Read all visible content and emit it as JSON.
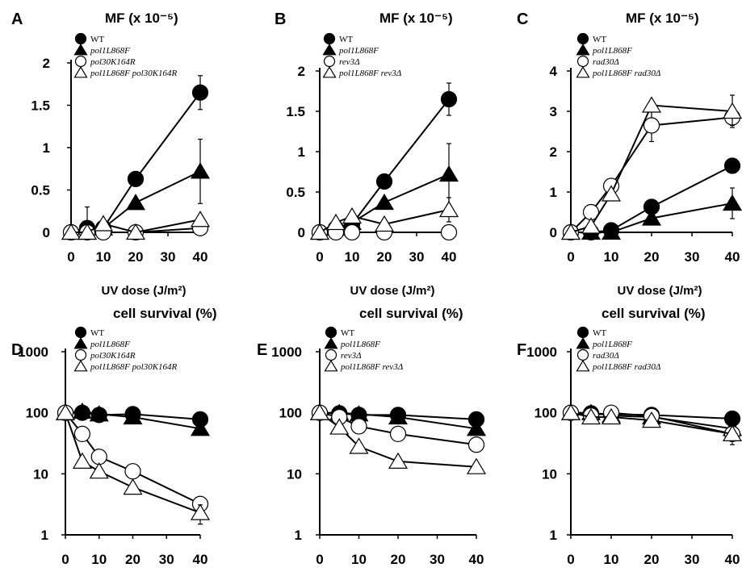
{
  "chart_data": [
    {
      "panel": "A",
      "type": "line",
      "title": "MF (x 10⁻⁵)",
      "xlabel": "UV dose (J/m²)",
      "x_ticks": [
        "0",
        "10",
        "20",
        "30",
        "40"
      ],
      "y_ticks": [
        "0",
        "0.5",
        "1",
        "1.5",
        "2"
      ],
      "ylim": [
        0,
        2
      ],
      "y_scale": "linear",
      "legend": [
        "WT",
        "pol1L868F",
        "pol30K164R",
        "pol1L868F pol30K164R"
      ],
      "series": [
        {
          "name": "WT",
          "marker": "circle-filled",
          "x": [
            0,
            5,
            10,
            20,
            40
          ],
          "y": [
            0,
            0.05,
            0.05,
            0.63,
            1.65
          ],
          "err": [
            0,
            0,
            0,
            0,
            0.2
          ]
        },
        {
          "name": "pol1L868F",
          "marker": "triangle-filled",
          "x": [
            0,
            5,
            10,
            20,
            40
          ],
          "y": [
            0,
            0,
            0.05,
            0.35,
            0.72
          ],
          "err": [
            0,
            0,
            0,
            0,
            0.38
          ]
        },
        {
          "name": "pol30K164R",
          "marker": "circle-open",
          "x": [
            0,
            5,
            10,
            20,
            40
          ],
          "y": [
            0,
            0,
            0,
            0,
            0.05
          ],
          "err": [
            0,
            0.3,
            0,
            0,
            0
          ]
        },
        {
          "name": "pol1L868F pol30K164R",
          "marker": "triangle-open",
          "x": [
            0,
            5,
            10,
            20,
            40
          ],
          "y": [
            0,
            0,
            0.1,
            0,
            0.15
          ],
          "err": [
            0,
            0,
            0,
            0,
            0
          ]
        }
      ]
    },
    {
      "panel": "B",
      "type": "line",
      "title": "MF (x 10⁻⁵)",
      "xlabel": "UV dose (J/m²)",
      "x_ticks": [
        "0",
        "10",
        "20",
        "30",
        "40"
      ],
      "y_ticks": [
        "0",
        "0.5",
        "1",
        "1.5",
        "2"
      ],
      "ylim": [
        0,
        2
      ],
      "y_scale": "linear",
      "legend": [
        "WT",
        "pol1L868F",
        "rev3Δ",
        "pol1L868F rev3Δ"
      ],
      "series": [
        {
          "name": "WT",
          "marker": "circle-filled",
          "x": [
            0,
            5,
            10,
            20,
            40
          ],
          "y": [
            0,
            0.05,
            0.1,
            0.63,
            1.65
          ],
          "err": [
            0,
            0,
            0,
            0,
            0.2
          ]
        },
        {
          "name": "pol1L868F",
          "marker": "triangle-filled",
          "x": [
            0,
            5,
            10,
            20,
            40
          ],
          "y": [
            0,
            0.05,
            0.12,
            0.37,
            0.72
          ],
          "err": [
            0,
            0,
            0,
            0,
            0.38
          ]
        },
        {
          "name": "rev3Δ",
          "marker": "circle-open",
          "x": [
            0,
            5,
            10,
            20,
            40
          ],
          "y": [
            0,
            0,
            0,
            0,
            0
          ],
          "err": [
            0,
            0,
            0,
            0,
            0
          ]
        },
        {
          "name": "pol1L868F rev3Δ",
          "marker": "triangle-open",
          "x": [
            0,
            5,
            10,
            20,
            40
          ],
          "y": [
            0,
            0.12,
            0.2,
            0.1,
            0.28
          ],
          "err": [
            0,
            0,
            0,
            0,
            0.15
          ]
        }
      ]
    },
    {
      "panel": "C",
      "type": "line",
      "title": "MF (x 10⁻⁵)",
      "xlabel": "UV dose (J/m²)",
      "x_ticks": [
        "0",
        "10",
        "20",
        "30",
        "40"
      ],
      "y_ticks": [
        "0",
        "1",
        "2",
        "3",
        "4"
      ],
      "ylim": [
        0,
        4
      ],
      "y_scale": "linear",
      "legend": [
        "WT",
        "pol1L868F",
        "rad30Δ",
        "pol1L868F rad30Δ"
      ],
      "series": [
        {
          "name": "WT",
          "marker": "circle-filled",
          "x": [
            0,
            5,
            10,
            20,
            40
          ],
          "y": [
            0,
            0,
            0.05,
            0.63,
            1.65
          ],
          "err": [
            0,
            0,
            0,
            0,
            0
          ]
        },
        {
          "name": "pol1L868F",
          "marker": "triangle-filled",
          "x": [
            0,
            5,
            10,
            20,
            40
          ],
          "y": [
            0,
            0,
            0,
            0.35,
            0.72
          ],
          "err": [
            0,
            0,
            0,
            0,
            0.38
          ]
        },
        {
          "name": "rad30Δ",
          "marker": "circle-open",
          "x": [
            0,
            5,
            10,
            20,
            40
          ],
          "y": [
            0,
            0.5,
            1.15,
            2.65,
            2.85
          ],
          "err": [
            0,
            0,
            0,
            0.4,
            0.2
          ]
        },
        {
          "name": "pol1L868F rad30Δ",
          "marker": "triangle-open",
          "x": [
            0,
            5,
            10,
            20,
            40
          ],
          "y": [
            0,
            0.15,
            0.95,
            3.15,
            3.0
          ],
          "err": [
            0,
            0,
            0,
            0,
            0.4
          ]
        }
      ]
    },
    {
      "panel": "D",
      "type": "line",
      "title": "cell survival (%)",
      "xlabel": "UV dose (J/m²)",
      "x_ticks": [
        "0",
        "10",
        "20",
        "30",
        "40"
      ],
      "y_ticks": [
        "1",
        "10",
        "100",
        "1000"
      ],
      "ylim": [
        1,
        1000
      ],
      "y_scale": "log",
      "legend": [
        "WT",
        "pol1L868F",
        "pol30K164R",
        "pol1L868F pol30K164R"
      ],
      "series": [
        {
          "name": "WT",
          "marker": "circle-filled",
          "x": [
            0,
            5,
            10,
            20,
            40
          ],
          "y": [
            100,
            100,
            92,
            95,
            78
          ],
          "err": [
            0,
            0,
            0,
            0,
            0
          ]
        },
        {
          "name": "pol1L868F",
          "marker": "triangle-filled",
          "x": [
            0,
            5,
            10,
            20,
            40
          ],
          "y": [
            100,
            105,
            95,
            85,
            55
          ],
          "err": [
            0,
            0,
            0,
            0,
            0
          ]
        },
        {
          "name": "pol30K164R",
          "marker": "circle-open",
          "x": [
            0,
            5,
            10,
            20,
            40
          ],
          "y": [
            100,
            45,
            19,
            11,
            3.2
          ],
          "err": [
            0,
            0,
            0,
            0,
            0
          ]
        },
        {
          "name": "pol1L868F pol30K164R",
          "marker": "triangle-open",
          "x": [
            0,
            5,
            10,
            20,
            40
          ],
          "y": [
            100,
            16,
            11,
            6,
            2.3
          ],
          "err": [
            0,
            0,
            0,
            0,
            0.8
          ]
        }
      ]
    },
    {
      "panel": "E",
      "type": "line",
      "title": "cell survival (%)",
      "xlabel": "UV dose (J/m²)",
      "x_ticks": [
        "0",
        "10",
        "20",
        "30",
        "40"
      ],
      "y_ticks": [
        "1",
        "10",
        "100",
        "1000"
      ],
      "ylim": [
        1,
        1000
      ],
      "y_scale": "log",
      "legend": [
        "WT",
        "pol1L868F",
        "rev3Δ",
        "pol1L868F rev3Δ"
      ],
      "series": [
        {
          "name": "WT",
          "marker": "circle-filled",
          "x": [
            0,
            5,
            10,
            20,
            40
          ],
          "y": [
            100,
            98,
            92,
            92,
            78
          ],
          "err": [
            0,
            0,
            0,
            0,
            0
          ]
        },
        {
          "name": "pol1L868F",
          "marker": "triangle-filled",
          "x": [
            0,
            5,
            10,
            20,
            40
          ],
          "y": [
            100,
            100,
            95,
            85,
            55
          ],
          "err": [
            0,
            0,
            0,
            0,
            0
          ]
        },
        {
          "name": "rev3Δ",
          "marker": "circle-open",
          "x": [
            0,
            5,
            10,
            20,
            40
          ],
          "y": [
            100,
            85,
            60,
            45,
            30
          ],
          "err": [
            0,
            0,
            0,
            0,
            0
          ]
        },
        {
          "name": "pol1L868F rev3Δ",
          "marker": "triangle-open",
          "x": [
            0,
            5,
            10,
            20,
            40
          ],
          "y": [
            100,
            58,
            28,
            16,
            13
          ],
          "err": [
            0,
            0,
            0,
            0,
            0
          ]
        }
      ]
    },
    {
      "panel": "F",
      "type": "line",
      "title": "cell survival (%)",
      "xlabel": "UV dose (J/m²)",
      "x_ticks": [
        "0",
        "10",
        "20",
        "30",
        "40"
      ],
      "y_ticks": [
        "1",
        "10",
        "100",
        "1000"
      ],
      "ylim": [
        1,
        1000
      ],
      "y_scale": "log",
      "legend": [
        "WT",
        "pol1L868F",
        "rad30Δ",
        "pol1L868F rad30Δ"
      ],
      "series": [
        {
          "name": "WT",
          "marker": "circle-filled",
          "x": [
            0,
            5,
            10,
            20,
            40
          ],
          "y": [
            100,
            98,
            95,
            92,
            80
          ],
          "err": [
            0,
            0,
            0,
            0,
            0
          ]
        },
        {
          "name": "pol1L868F",
          "marker": "triangle-filled",
          "x": [
            0,
            5,
            10,
            20,
            40
          ],
          "y": [
            100,
            100,
            90,
            85,
            55
          ],
          "err": [
            0,
            0,
            0,
            0,
            0
          ]
        },
        {
          "name": "rad30Δ",
          "marker": "circle-open",
          "x": [
            0,
            5,
            10,
            20,
            40
          ],
          "y": [
            100,
            90,
            100,
            88,
            45
          ],
          "err": [
            0,
            0,
            0,
            0,
            0
          ]
        },
        {
          "name": "pol1L868F rad30Δ",
          "marker": "triangle-open",
          "x": [
            0,
            5,
            10,
            20,
            40
          ],
          "y": [
            100,
            85,
            85,
            75,
            45
          ],
          "err": [
            0,
            0,
            0,
            0,
            15
          ]
        }
      ]
    }
  ]
}
